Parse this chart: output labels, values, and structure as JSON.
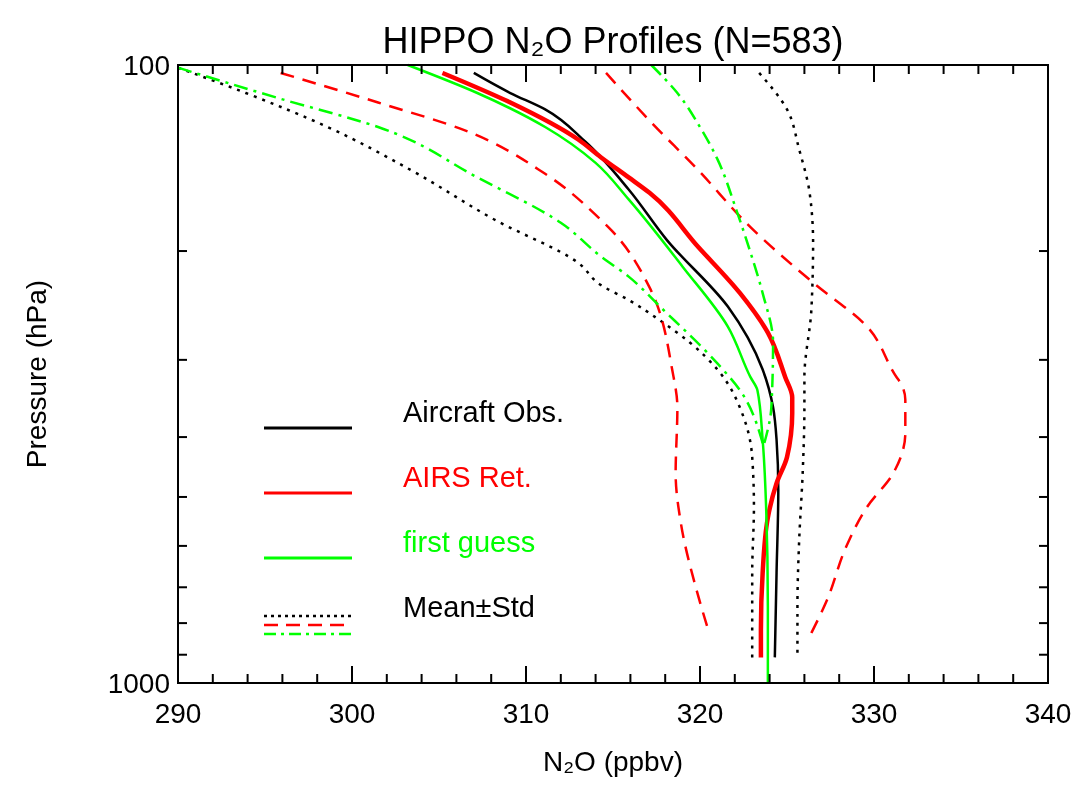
{
  "chart_data": {
    "type": "line",
    "title": "HIPPO N₂O Profiles (N=583)",
    "xlabel": "N₂O (ppbv)",
    "ylabel": "Pressure (hPa)",
    "xlim": [
      290,
      340
    ],
    "xticks": [
      290,
      {
        "value": 292,
        "label": null
      },
      {
        "value": 294,
        "label": null
      },
      {
        "value": 296,
        "label": null
      },
      {
        "value": 298,
        "label": null
      },
      300,
      {
        "value": 302,
        "label": null
      },
      {
        "value": 304,
        "label": null
      },
      {
        "value": 306,
        "label": null
      },
      {
        "value": 308,
        "label": null
      },
      310,
      {
        "value": 312,
        "label": null
      },
      {
        "value": 314,
        "label": null
      },
      {
        "value": 316,
        "label": null
      },
      {
        "value": 318,
        "label": null
      },
      320,
      {
        "value": 322,
        "label": null
      },
      {
        "value": 324,
        "label": null
      },
      {
        "value": 326,
        "label": null
      },
      {
        "value": 328,
        "label": null
      },
      330,
      {
        "value": 332,
        "label": null
      },
      {
        "value": 334,
        "label": null
      },
      {
        "value": 336,
        "label": null
      },
      {
        "value": 338,
        "label": null
      },
      340
    ],
    "ylim": [
      1000,
      100
    ],
    "yticks": [
      100,
      {
        "value": 200,
        "label": null
      },
      {
        "value": 300,
        "label": null
      },
      {
        "value": 400,
        "label": null
      },
      {
        "value": 500,
        "label": null
      },
      {
        "value": 600,
        "label": null
      },
      {
        "value": 700,
        "label": null
      },
      {
        "value": 800,
        "label": null
      },
      {
        "value": 900,
        "label": null
      },
      1000
    ],
    "log": "y",
    "grid": false,
    "legend": "bottom left",
    "series": [
      {
        "name": "Aircraft Obs.",
        "color": "#000000",
        "line_style": "solid",
        "x": [
          307.0,
          309.1,
          311.1,
          313.4,
          315.9,
          318.1,
          321.6,
          323.6,
          324.2,
          324.4,
          324.5,
          324.4,
          324.3
        ],
        "values": [
          103,
          111,
          118,
          133,
          159,
          192,
          246,
          311,
          358,
          404,
          487,
          663,
          909
        ]
      },
      {
        "name": "AIRS Ret.",
        "color": "#ff0000",
        "line_style": "solid",
        "x": [
          305.2,
          309.1,
          313.0,
          314.3,
          315.9,
          317.1,
          319.9,
          322.3,
          323.9,
          324.9,
          325.3,
          325.3,
          325.0,
          324.4,
          323.9,
          323.6,
          323.5,
          323.5
        ],
        "values": [
          103,
          115,
          132,
          141,
          152,
          161,
          197,
          234,
          271,
          320,
          345,
          366,
          431,
          475,
          540,
          664,
          820,
          909
        ]
      },
      {
        "name": "first guess",
        "color": "#00ff00",
        "line_style": "solid",
        "x": [
          303.2,
          307.2,
          311.1,
          314.0,
          315.9,
          319.0,
          321.6,
          322.9,
          323.3,
          323.6,
          323.8,
          323.9,
          323.9
        ],
        "values": [
          100,
          111,
          126,
          144,
          165,
          212,
          265,
          320,
          336,
          404,
          519,
          752,
          1000
        ]
      },
      {
        "name": "Mean±Std",
        "color": "#000000",
        "line_style": "dotted",
        "x": [
          290.0,
          293.9,
          298.6,
          303.4,
          308.2,
          313.0,
          314.3,
          315.9,
          317.7,
          319.4,
          321.0,
          322.5,
          323.0,
          323.1,
          323.0,
          323.0
        ],
        "values": [
          101,
          111,
          126,
          148,
          178,
          209,
          227,
          240,
          259,
          281,
          311,
          371,
          431,
          519,
          664,
          909
        ]
      },
      {
        "color": "#ff0000",
        "line_style": "dashed",
        "x": [
          295.9,
          301.5,
          306.3,
          311.1,
          314.3,
          314.9,
          317.1,
          318.4,
          318.7,
          318.6,
          318.9,
          319.8,
          320.4
        ],
        "values": [
          103,
          115,
          127,
          150,
          178,
          185,
          229,
          311,
          358,
          458,
          551,
          707,
          808
        ]
      },
      {
        "color": "#00ff00",
        "line_style": "dashdot",
        "x": [
          290.0,
          295.7,
          301.5,
          307.2,
          312.0,
          314.3,
          315.9,
          317.7,
          321.0,
          322.3,
          323.6
        ],
        "values": [
          101,
          113,
          126,
          152,
          180,
          204,
          220,
          246,
          304,
          336,
          409
        ]
      },
      {
        "color": "#000000",
        "line_style": "dotted",
        "x": [
          323.4,
          325.0,
          325.7,
          326.3,
          326.5,
          326.4,
          326.0,
          326.0,
          325.9,
          325.7,
          325.6,
          325.6
        ],
        "values": [
          103,
          118,
          137,
          161,
          194,
          249,
          320,
          358,
          458,
          587,
          752,
          893
        ]
      },
      {
        "color": "#ff0000",
        "line_style": "dashed",
        "x": [
          314.6,
          317.1,
          319.9,
          322.9,
          326.5,
          329.6,
          331.3,
          331.5,
          331.8,
          331.8,
          331.1,
          329.6,
          328.4,
          327.3,
          326.4
        ],
        "values": [
          103,
          123,
          148,
          183,
          225,
          265,
          320,
          326,
          348,
          394,
          458,
          519,
          602,
          734,
          830
        ]
      },
      {
        "color": "#00ff00",
        "line_style": "dashdot",
        "x": [
          317.2,
          318.7,
          320.0,
          321.0,
          322.1,
          322.9,
          323.6,
          324.2,
          324.1,
          323.7
        ],
        "values": [
          100,
          111,
          126,
          142,
          172,
          201,
          234,
          281,
          358,
          409
        ]
      }
    ]
  }
}
